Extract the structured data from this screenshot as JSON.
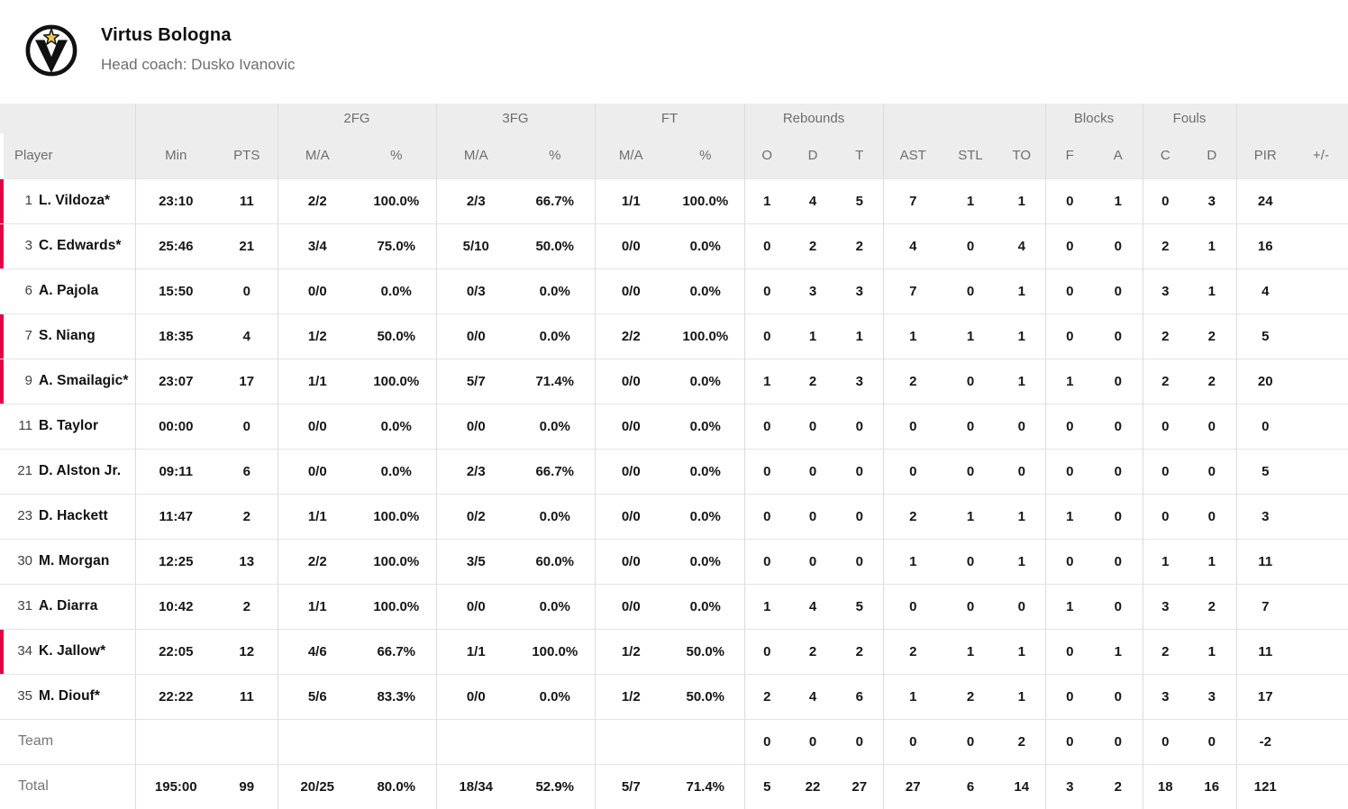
{
  "header": {
    "team_name": "Virtus Bologna",
    "coach_line": "Head coach: Dusko Ivanovic",
    "logo": "virtus-bologna-logo"
  },
  "colors": {
    "accent_red": "#e30045",
    "header_bg": "#ededed",
    "header_text": "#6e6e6e",
    "row_border": "#e4e4e4",
    "column_border": "#dcdcdc",
    "text_dark": "#161616",
    "text_gray": "#767676",
    "logo_star_yellow": "#f2c94c",
    "logo_black": "#111111"
  },
  "table": {
    "group_headers": [
      {
        "label": "",
        "span": 1
      },
      {
        "label": "",
        "span": 2
      },
      {
        "label": "2FG",
        "span": 2
      },
      {
        "label": "3FG",
        "span": 2
      },
      {
        "label": "FT",
        "span": 2
      },
      {
        "label": "Rebounds",
        "span": 3
      },
      {
        "label": "",
        "span": 3
      },
      {
        "label": "Blocks",
        "span": 2
      },
      {
        "label": "Fouls",
        "span": 2
      },
      {
        "label": "",
        "span": 2
      }
    ],
    "columns": [
      "Player",
      "Min",
      "PTS",
      "M/A",
      "%",
      "M/A",
      "%",
      "M/A",
      "%",
      "O",
      "D",
      "T",
      "AST",
      "STL",
      "TO",
      "F",
      "A",
      "C",
      "D",
      "PIR",
      "+/-"
    ],
    "rows": [
      {
        "number": "1",
        "name": "L. Vildoza*",
        "on_court": true,
        "stats": [
          "23:10",
          "11",
          "2/2",
          "100.0%",
          "2/3",
          "66.7%",
          "1/1",
          "100.0%",
          "1",
          "4",
          "5",
          "7",
          "1",
          "1",
          "0",
          "1",
          "0",
          "3",
          "24",
          ""
        ]
      },
      {
        "number": "3",
        "name": "C. Edwards*",
        "on_court": true,
        "stats": [
          "25:46",
          "21",
          "3/4",
          "75.0%",
          "5/10",
          "50.0%",
          "0/0",
          "0.0%",
          "0",
          "2",
          "2",
          "4",
          "0",
          "4",
          "0",
          "0",
          "2",
          "1",
          "16",
          ""
        ]
      },
      {
        "number": "6",
        "name": "A. Pajola",
        "on_court": false,
        "stats": [
          "15:50",
          "0",
          "0/0",
          "0.0%",
          "0/3",
          "0.0%",
          "0/0",
          "0.0%",
          "0",
          "3",
          "3",
          "7",
          "0",
          "1",
          "0",
          "0",
          "3",
          "1",
          "4",
          ""
        ]
      },
      {
        "number": "7",
        "name": "S. Niang",
        "on_court": true,
        "stats": [
          "18:35",
          "4",
          "1/2",
          "50.0%",
          "0/0",
          "0.0%",
          "2/2",
          "100.0%",
          "0",
          "1",
          "1",
          "1",
          "1",
          "1",
          "0",
          "0",
          "2",
          "2",
          "5",
          ""
        ]
      },
      {
        "number": "9",
        "name": "A. Smailagic*",
        "on_court": true,
        "stats": [
          "23:07",
          "17",
          "1/1",
          "100.0%",
          "5/7",
          "71.4%",
          "0/0",
          "0.0%",
          "1",
          "2",
          "3",
          "2",
          "0",
          "1",
          "1",
          "0",
          "2",
          "2",
          "20",
          ""
        ]
      },
      {
        "number": "11",
        "name": "B. Taylor",
        "on_court": false,
        "stats": [
          "00:00",
          "0",
          "0/0",
          "0.0%",
          "0/0",
          "0.0%",
          "0/0",
          "0.0%",
          "0",
          "0",
          "0",
          "0",
          "0",
          "0",
          "0",
          "0",
          "0",
          "0",
          "0",
          ""
        ]
      },
      {
        "number": "21",
        "name": "D. Alston Jr.",
        "on_court": false,
        "stats": [
          "09:11",
          "6",
          "0/0",
          "0.0%",
          "2/3",
          "66.7%",
          "0/0",
          "0.0%",
          "0",
          "0",
          "0",
          "0",
          "0",
          "0",
          "0",
          "0",
          "0",
          "0",
          "5",
          ""
        ]
      },
      {
        "number": "23",
        "name": "D. Hackett",
        "on_court": false,
        "stats": [
          "11:47",
          "2",
          "1/1",
          "100.0%",
          "0/2",
          "0.0%",
          "0/0",
          "0.0%",
          "0",
          "0",
          "0",
          "2",
          "1",
          "1",
          "1",
          "0",
          "0",
          "0",
          "3",
          ""
        ]
      },
      {
        "number": "30",
        "name": "M. Morgan",
        "on_court": false,
        "stats": [
          "12:25",
          "13",
          "2/2",
          "100.0%",
          "3/5",
          "60.0%",
          "0/0",
          "0.0%",
          "0",
          "0",
          "0",
          "1",
          "0",
          "1",
          "0",
          "0",
          "1",
          "1",
          "11",
          ""
        ]
      },
      {
        "number": "31",
        "name": "A. Diarra",
        "on_court": false,
        "stats": [
          "10:42",
          "2",
          "1/1",
          "100.0%",
          "0/0",
          "0.0%",
          "0/0",
          "0.0%",
          "1",
          "4",
          "5",
          "0",
          "0",
          "0",
          "1",
          "0",
          "3",
          "2",
          "7",
          ""
        ]
      },
      {
        "number": "34",
        "name": "K. Jallow*",
        "on_court": true,
        "stats": [
          "22:05",
          "12",
          "4/6",
          "66.7%",
          "1/1",
          "100.0%",
          "1/2",
          "50.0%",
          "0",
          "2",
          "2",
          "2",
          "1",
          "1",
          "0",
          "1",
          "2",
          "1",
          "11",
          ""
        ]
      },
      {
        "number": "35",
        "name": "M. Diouf*",
        "on_court": false,
        "stats": [
          "22:22",
          "11",
          "5/6",
          "83.3%",
          "0/0",
          "0.0%",
          "1/2",
          "50.0%",
          "2",
          "4",
          "6",
          "1",
          "2",
          "1",
          "0",
          "0",
          "3",
          "3",
          "17",
          ""
        ]
      },
      {
        "label": "Team",
        "on_court": false,
        "stats": [
          "",
          "",
          "",
          "",
          "",
          "",
          "",
          "",
          "0",
          "0",
          "0",
          "0",
          "0",
          "2",
          "0",
          "0",
          "0",
          "0",
          "-2",
          ""
        ]
      },
      {
        "label": "Total",
        "on_court": false,
        "stats": [
          "195:00",
          "99",
          "20/25",
          "80.0%",
          "18/34",
          "52.9%",
          "5/7",
          "71.4%",
          "5",
          "22",
          "27",
          "27",
          "6",
          "14",
          "3",
          "2",
          "18",
          "16",
          "121",
          ""
        ]
      }
    ]
  }
}
